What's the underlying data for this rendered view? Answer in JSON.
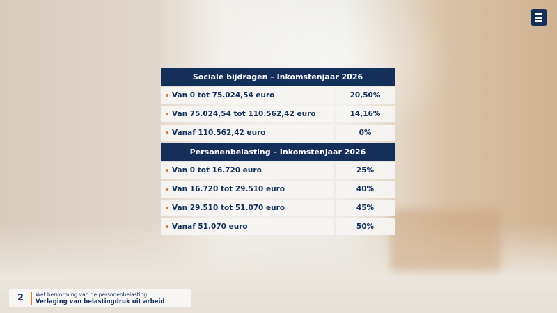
{
  "tables": [
    {
      "title": "Sociale bijdragen – Inkomstenjaar 2026",
      "rows": [
        [
          "Van 0 tot 75.024,54 euro",
          "20,50%"
        ],
        [
          "Van 75.024,54 tot 110.562,42 euro",
          "14,16%"
        ],
        [
          "Vanaf 110.562,42 euro",
          "0%"
        ]
      ]
    },
    {
      "title": "Personenbelasting – Inkomstenjaar 2026",
      "rows": [
        [
          "Van 0 tot 16.720 euro",
          "25%"
        ],
        [
          "Van 16.720 tot 29.510 euro",
          "40%"
        ],
        [
          "Van 29.510 tot 51.070 euro",
          "45%"
        ],
        [
          "Vanaf 51.070 euro",
          "50%"
        ]
      ]
    }
  ],
  "footer": {
    "number": "2",
    "subtitle": "Wet hervorming van de personenbelasting",
    "title": "Verlaging van belastingdruk uit arbeid"
  }
}
